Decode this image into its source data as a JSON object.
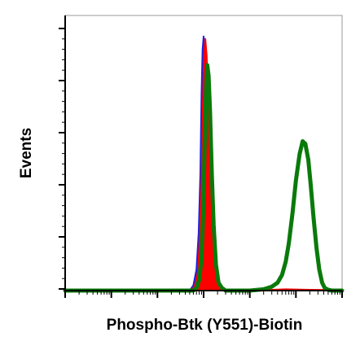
{
  "chart_data": {
    "type": "line",
    "title": "",
    "xlabel": "Phospho-Btk (Y551)-Biotin",
    "ylabel": "Events",
    "x_scale": "log",
    "xlim": [
      1,
      1000000
    ],
    "ylim": [
      0,
      100
    ],
    "grid": false,
    "legend": "none",
    "series": [
      {
        "color": "#2020e0",
        "x": [
          1,
          300,
          500,
          600,
          700,
          780,
          850,
          900,
          950,
          1000,
          1050,
          1120,
          1200,
          1300,
          1400,
          1600,
          1900,
          2300,
          1000000
        ],
        "y": [
          0,
          0,
          0,
          2,
          8,
          22,
          45,
          75,
          92,
          97,
          93,
          80,
          58,
          35,
          18,
          6,
          1,
          0,
          0
        ]
      },
      {
        "color": "#ff0000",
        "x": [
          1,
          350,
          550,
          650,
          750,
          830,
          900,
          960,
          1020,
          1090,
          1160,
          1250,
          1350,
          1480,
          1650,
          1900,
          2300,
          2700,
          20000,
          30000,
          60000,
          120000,
          200000,
          1000000
        ],
        "y": [
          0,
          0,
          0,
          2,
          7,
          20,
          42,
          70,
          90,
          96,
          90,
          75,
          52,
          30,
          14,
          5,
          1,
          0,
          0,
          0.3,
          0.5,
          0.4,
          0.3,
          0.2
        ]
      },
      {
        "color": "#0a7a0a",
        "x": [
          1,
          400,
          600,
          700,
          800,
          900,
          980,
          1050,
          1120,
          1200,
          1280,
          1380,
          1500,
          1650,
          1850,
          2100,
          2500,
          3000,
          10000,
          20000,
          30000,
          40000,
          50000,
          60000,
          70000,
          85000,
          100000,
          120000,
          140000,
          160000,
          185000,
          210000,
          240000,
          280000,
          320000,
          370000,
          420000,
          500000,
          600000,
          1000000
        ],
        "y": [
          0,
          0,
          0,
          1,
          4,
          12,
          30,
          55,
          75,
          86,
          82,
          68,
          45,
          25,
          10,
          3,
          1,
          0,
          0,
          0.5,
          1.5,
          3,
          6,
          11,
          18,
          30,
          42,
          52,
          57,
          56,
          50,
          40,
          28,
          16,
          8,
          3,
          1,
          0.3,
          0,
          0
        ]
      }
    ]
  }
}
